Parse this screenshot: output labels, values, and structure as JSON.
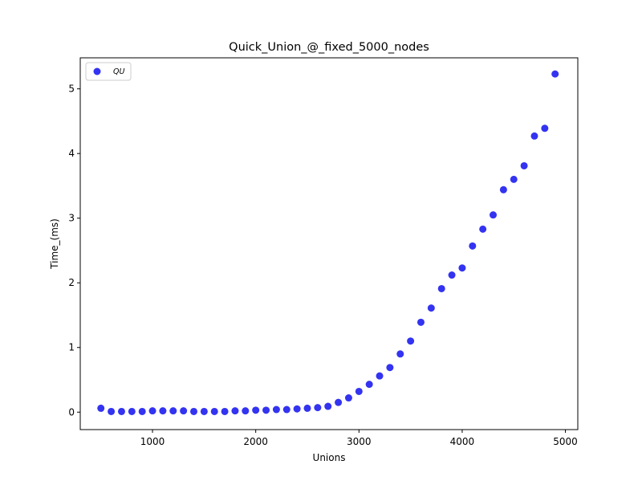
{
  "chart_data": {
    "type": "scatter",
    "title": "Quick_Union_@_fixed_5000_nodes",
    "xlabel": "Unions",
    "ylabel": "Time_(ms)",
    "xlim": [
      300,
      5120
    ],
    "ylim": [
      -0.27,
      5.48
    ],
    "xticks": [
      1000,
      2000,
      3000,
      4000,
      5000
    ],
    "yticks": [
      0,
      1,
      2,
      3,
      4,
      5
    ],
    "grid": false,
    "legend_position": "top-left",
    "series": [
      {
        "name": "QU",
        "color": "#0000ee",
        "x": [
          500,
          600,
          700,
          800,
          900,
          1000,
          1100,
          1200,
          1300,
          1400,
          1500,
          1600,
          1700,
          1800,
          1900,
          2000,
          2100,
          2200,
          2300,
          2400,
          2500,
          2600,
          2700,
          2800,
          2900,
          3000,
          3100,
          3200,
          3300,
          3400,
          3500,
          3600,
          3700,
          3800,
          3900,
          4000,
          4100,
          4200,
          4300,
          4400,
          4500,
          4600,
          4700,
          4800,
          4900
        ],
        "y": [
          0.06,
          0.01,
          0.01,
          0.01,
          0.01,
          0.02,
          0.02,
          0.02,
          0.02,
          0.01,
          0.01,
          0.01,
          0.01,
          0.02,
          0.02,
          0.03,
          0.03,
          0.04,
          0.04,
          0.05,
          0.06,
          0.07,
          0.09,
          0.15,
          0.22,
          0.32,
          0.43,
          0.56,
          0.69,
          0.9,
          1.1,
          1.39,
          1.61,
          1.91,
          2.12,
          2.23,
          2.57,
          2.83,
          3.05,
          3.44,
          3.6,
          3.81,
          4.27,
          4.39,
          5.23
        ]
      }
    ]
  }
}
